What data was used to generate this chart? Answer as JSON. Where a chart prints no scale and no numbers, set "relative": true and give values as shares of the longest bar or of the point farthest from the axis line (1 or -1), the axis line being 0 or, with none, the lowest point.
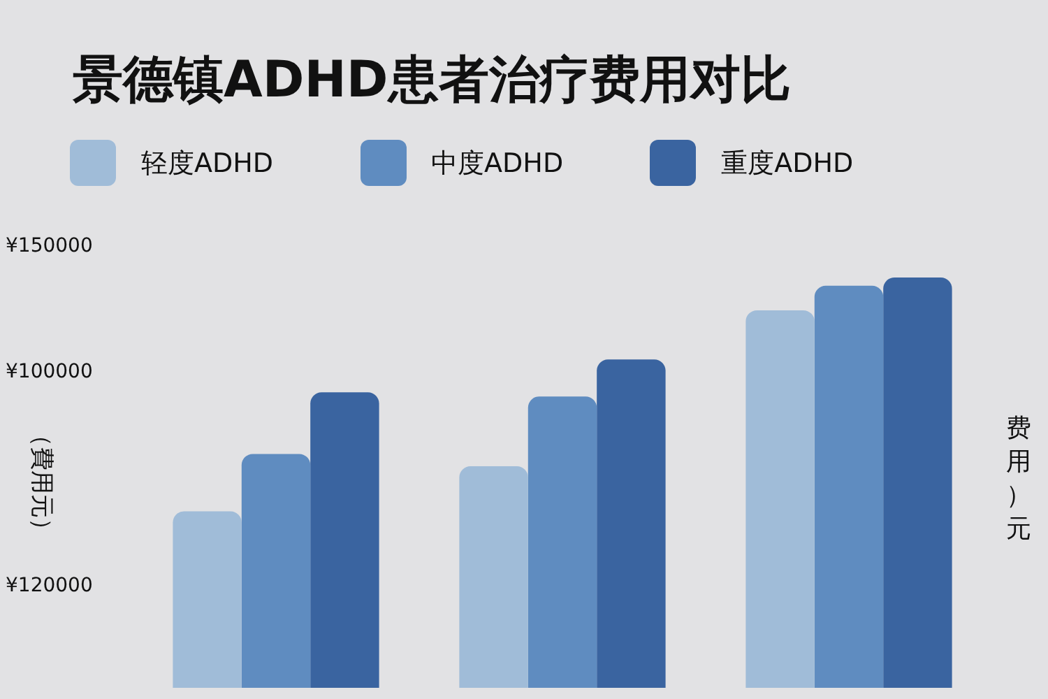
{
  "chart_data": {
    "type": "bar",
    "title": "景德镇ADHD患者治疗费用对比",
    "ylabel": "（費用元）",
    "y2label": "费用）元",
    "categories": [
      null,
      null,
      null
    ],
    "relative": true,
    "series": [
      {
        "name": "轻度ADHD",
        "color": "#a0bcd8",
        "values": [
          0.43,
          0.54,
          0.92
        ]
      },
      {
        "name": "中度ADHD",
        "color": "#5f8cc0",
        "values": [
          0.57,
          0.71,
          0.98
        ]
      },
      {
        "name": "重度ADHD",
        "color": "#3a64a0",
        "values": [
          0.72,
          0.8,
          1
        ]
      }
    ],
    "annotations": [
      "¥150000",
      "¥100000",
      "¥120000"
    ],
    "legend": "top left"
  }
}
